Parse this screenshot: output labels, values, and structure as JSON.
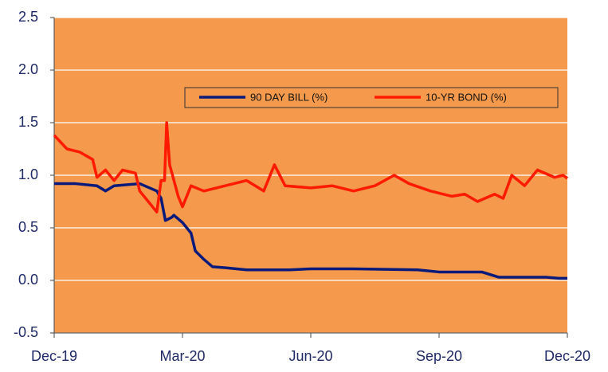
{
  "chart_data": {
    "type": "line",
    "xlim": [
      0,
      12
    ],
    "xticks": [
      {
        "value": 0,
        "label": "Dec-19"
      },
      {
        "value": 3,
        "label": "Mar-20"
      },
      {
        "value": 6,
        "label": "Jun-20"
      },
      {
        "value": 9,
        "label": "Sep-20"
      },
      {
        "value": 12,
        "label": "Dec-20"
      }
    ],
    "ylim": [
      -0.5,
      2.5
    ],
    "yticks": [
      {
        "value": -0.5,
        "label": "-0.5"
      },
      {
        "value": 0,
        "label": "0.0"
      },
      {
        "value": 0.5,
        "label": "0.5"
      },
      {
        "value": 1,
        "label": "1.0"
      },
      {
        "value": 1.5,
        "label": "1.5"
      },
      {
        "value": 2,
        "label": "2.0"
      },
      {
        "value": 2.5,
        "label": "2.5"
      }
    ],
    "grid": true,
    "background": "#f59a4c",
    "legend": "top-right",
    "series": [
      {
        "name": "90 DAY BILL (%)",
        "color": "#0a1a7a",
        "x": [
          0,
          0.5,
          1.0,
          1.2,
          1.4,
          2.0,
          2.4,
          2.5,
          2.6,
          2.75,
          2.8,
          3.0,
          3.2,
          3.3,
          3.5,
          3.7,
          4.0,
          4.5,
          5.5,
          6.0,
          7.0,
          8.5,
          9.0,
          10.0,
          10.4,
          11.5,
          11.8,
          12.0
        ],
        "values": [
          0.92,
          0.92,
          0.9,
          0.85,
          0.9,
          0.92,
          0.85,
          0.78,
          0.57,
          0.6,
          0.62,
          0.55,
          0.45,
          0.28,
          0.2,
          0.13,
          0.12,
          0.1,
          0.1,
          0.11,
          0.11,
          0.1,
          0.08,
          0.08,
          0.03,
          0.03,
          0.02,
          0.02
        ]
      },
      {
        "name": "10-YR BOND (%)",
        "color": "#ff1a00",
        "x": [
          0,
          0.3,
          0.6,
          0.9,
          1.0,
          1.2,
          1.4,
          1.6,
          1.9,
          2.0,
          2.2,
          2.4,
          2.5,
          2.58,
          2.63,
          2.7,
          2.9,
          3.0,
          3.2,
          3.5,
          4.0,
          4.5,
          4.9,
          5.15,
          5.4,
          6.0,
          6.5,
          7.0,
          7.5,
          7.95,
          8.3,
          8.8,
          9.3,
          9.6,
          9.9,
          10.3,
          10.5,
          10.7,
          11.0,
          11.3,
          11.7,
          11.9,
          12.0
        ],
        "values": [
          1.38,
          1.25,
          1.22,
          1.15,
          0.98,
          1.05,
          0.95,
          1.05,
          1.02,
          0.85,
          0.75,
          0.65,
          0.95,
          0.95,
          1.5,
          1.1,
          0.8,
          0.7,
          0.9,
          0.85,
          0.9,
          0.95,
          0.85,
          1.1,
          0.9,
          0.88,
          0.9,
          0.85,
          0.9,
          1.0,
          0.92,
          0.85,
          0.8,
          0.82,
          0.75,
          0.82,
          0.78,
          1.0,
          0.9,
          1.05,
          0.98,
          1.0,
          0.97
        ]
      }
    ]
  }
}
